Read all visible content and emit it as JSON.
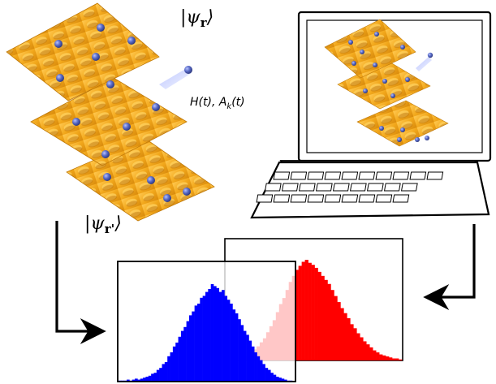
{
  "labels": {
    "psi_top": {
      "open": "|",
      "symbol": "ψ",
      "subscript": "r",
      "close": "⟩"
    },
    "psi_bottom": {
      "open": "|",
      "symbol": "ψ",
      "subscript": "r'",
      "close": "⟩"
    },
    "hamiltonian": {
      "main": "H(t), A",
      "subscript": "k",
      "tail": "(t)"
    }
  },
  "colors": {
    "surface": "#f2a81c",
    "surface_dark": "#c97a08",
    "atom": "#4a5fb8",
    "blue_hist": "#0000ff",
    "red_hist": "#ff0000",
    "arrow": "#000000"
  },
  "chart_data": [
    {
      "type": "bar",
      "series": [
        {
          "color": "#0000ff",
          "values": [
            1,
            1,
            1,
            2,
            1,
            2,
            3,
            2,
            3,
            4,
            5,
            6,
            8,
            9,
            12,
            14,
            18,
            20,
            26,
            30,
            36,
            40,
            46,
            52,
            56,
            62,
            68,
            72,
            78,
            80,
            86,
            88,
            92,
            95,
            100,
            98,
            96,
            92,
            94,
            88,
            84,
            80,
            74,
            70,
            64,
            58,
            52,
            48,
            42,
            36,
            30,
            26,
            22,
            18,
            14,
            12,
            9,
            7,
            5,
            4,
            3,
            2,
            1,
            1
          ]
        }
      ],
      "xlabel": "",
      "ylabel": ""
    },
    {
      "type": "bar",
      "series": [
        {
          "color": "#ff0000",
          "values": [
            4,
            6,
            8,
            11,
            14,
            18,
            22,
            28,
            34,
            40,
            48,
            56,
            62,
            70,
            78,
            84,
            90,
            94,
            98,
            100,
            97,
            95,
            92,
            88,
            84,
            80,
            76,
            70,
            64,
            58,
            52,
            47,
            42,
            36,
            32,
            27,
            23,
            19,
            16,
            13,
            10,
            8,
            6,
            5,
            4,
            3,
            2,
            2,
            1
          ]
        }
      ],
      "xlabel": "",
      "ylabel": ""
    }
  ],
  "laptop": {
    "keyboard_rows": [
      10,
      9,
      9
    ]
  }
}
